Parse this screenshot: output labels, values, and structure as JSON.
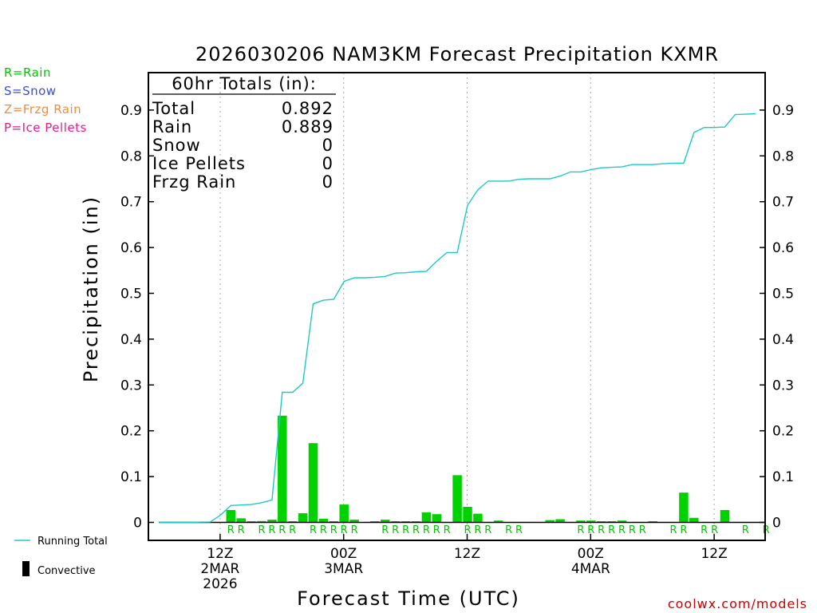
{
  "chart_data": {
    "type": "bar+line",
    "title": "2026030206 NAM3KM Forecast Precipitation KXMR",
    "xlabel": "Forecast Time (UTC)",
    "ylabel": "Precipitation (in)",
    "ylim": [
      0,
      0.97
    ],
    "xlim_hours": [
      -1.2,
      61
    ],
    "y_ticks": [
      "0",
      "0.1",
      "0.2",
      "0.3",
      "0.4",
      "0.5",
      "0.6",
      "0.7",
      "0.8",
      "0.9"
    ],
    "x_ticks": [
      {
        "hour": 6,
        "lines": [
          "12Z",
          "2MAR",
          "2026"
        ]
      },
      {
        "hour": 18,
        "lines": [
          "00Z",
          "3MAR"
        ]
      },
      {
        "hour": 30,
        "lines": [
          "12Z"
        ]
      },
      {
        "hour": 42,
        "lines": [
          "00Z",
          "4MAR"
        ]
      },
      {
        "hour": 54,
        "lines": [
          "12Z"
        ]
      }
    ],
    "totals_box": {
      "header": "60hr Totals (in):",
      "rows": [
        {
          "label": "Total",
          "value": "0.892"
        },
        {
          "label": "Rain",
          "value": "0.889"
        },
        {
          "label": "Snow",
          "value": "0"
        },
        {
          "label": "Ice Pellets",
          "value": "0"
        },
        {
          "label": "Frzg Rain",
          "value": "0"
        }
      ]
    },
    "type_legend": [
      {
        "text": "R=Rain",
        "color": "#00c800"
      },
      {
        "text": "S=Snow",
        "color": "#3c50dc"
      },
      {
        "text": "Z=Frzg Rain",
        "color": "#f08c3c"
      },
      {
        "text": "P=Ice Pellets",
        "color": "#e61e8c"
      }
    ],
    "bottom_legend": {
      "running_total": "Running Total",
      "convective": "Convective"
    },
    "credit": "coolwx.com/models",
    "colors": {
      "bar": "#00d200",
      "line": "#20c8c8",
      "gridline": "#aaaaaa"
    },
    "hourly_precip": [
      {
        "hour": 0,
        "value": 0
      },
      {
        "hour": 1,
        "value": 0
      },
      {
        "hour": 2,
        "value": 0
      },
      {
        "hour": 3,
        "value": 0
      },
      {
        "hour": 4,
        "value": 0
      },
      {
        "hour": 5,
        "value": 0
      },
      {
        "hour": 6,
        "value": 0
      },
      {
        "hour": 7,
        "value": 0.027
      },
      {
        "hour": 8,
        "value": 0.009
      },
      {
        "hour": 9,
        "value": 0.001
      },
      {
        "hour": 10,
        "value": 0.003
      },
      {
        "hour": 11,
        "value": 0.006
      },
      {
        "hour": 12,
        "value": 0.233
      },
      {
        "hour": 13,
        "value": 0.001
      },
      {
        "hour": 14,
        "value": 0.02
      },
      {
        "hour": 15,
        "value": 0.173
      },
      {
        "hour": 16,
        "value": 0.008
      },
      {
        "hour": 17,
        "value": 0.001
      },
      {
        "hour": 18,
        "value": 0.039
      },
      {
        "hour": 19,
        "value": 0.006
      },
      {
        "hour": 20,
        "value": 0
      },
      {
        "hour": 21,
        "value": 0.002
      },
      {
        "hour": 22,
        "value": 0.006
      },
      {
        "hour": 23,
        "value": 0.001
      },
      {
        "hour": 24,
        "value": 0.001
      },
      {
        "hour": 25,
        "value": 0.001
      },
      {
        "hour": 26,
        "value": 0.022
      },
      {
        "hour": 27,
        "value": 0.018
      },
      {
        "hour": 28,
        "value": 0
      },
      {
        "hour": 29,
        "value": 0.103
      },
      {
        "hour": 30,
        "value": 0.034
      },
      {
        "hour": 31,
        "value": 0.019
      },
      {
        "hour": 32,
        "value": 0
      },
      {
        "hour": 33,
        "value": 0.004
      },
      {
        "hour": 34,
        "value": 0
      },
      {
        "hour": 35,
        "value": 0
      },
      {
        "hour": 36,
        "value": 0
      },
      {
        "hour": 37,
        "value": 0
      },
      {
        "hour": 38,
        "value": 0.005
      },
      {
        "hour": 39,
        "value": 0.007
      },
      {
        "hour": 40,
        "value": 0
      },
      {
        "hour": 41,
        "value": 0.004
      },
      {
        "hour": 42,
        "value": 0.004
      },
      {
        "hour": 43,
        "value": 0.001
      },
      {
        "hour": 44,
        "value": 0.001
      },
      {
        "hour": 45,
        "value": 0.004
      },
      {
        "hour": 46,
        "value": 0
      },
      {
        "hour": 47,
        "value": 0
      },
      {
        "hour": 48,
        "value": 0.002
      },
      {
        "hour": 49,
        "value": 0
      },
      {
        "hour": 50,
        "value": 0
      },
      {
        "hour": 51,
        "value": 0.065
      },
      {
        "hour": 52,
        "value": 0.01
      },
      {
        "hour": 53,
        "value": 0
      },
      {
        "hour": 54,
        "value": 0
      },
      {
        "hour": 55,
        "value": 0.027
      },
      {
        "hour": 56,
        "value": 0
      },
      {
        "hour": 57,
        "value": 0
      },
      {
        "hour": 58,
        "value": 0
      },
      {
        "hour": 59,
        "value": 0
      }
    ],
    "running_total": [
      {
        "hour": 0,
        "value": 0
      },
      {
        "hour": 3,
        "value": 0
      },
      {
        "hour": 5,
        "value": 0.001
      },
      {
        "hour": 6,
        "value": 0.016
      },
      {
        "hour": 7,
        "value": 0.037
      },
      {
        "hour": 8,
        "value": 0.038
      },
      {
        "hour": 9,
        "value": 0.039
      },
      {
        "hour": 10,
        "value": 0.043
      },
      {
        "hour": 11,
        "value": 0.049
      },
      {
        "hour": 12,
        "value": 0.284
      },
      {
        "hour": 13,
        "value": 0.284
      },
      {
        "hour": 14,
        "value": 0.304
      },
      {
        "hour": 15,
        "value": 0.477
      },
      {
        "hour": 16,
        "value": 0.485
      },
      {
        "hour": 17,
        "value": 0.487
      },
      {
        "hour": 18,
        "value": 0.526
      },
      {
        "hour": 19,
        "value": 0.534
      },
      {
        "hour": 20,
        "value": 0.534
      },
      {
        "hour": 21,
        "value": 0.535
      },
      {
        "hour": 22,
        "value": 0.537
      },
      {
        "hour": 23,
        "value": 0.544
      },
      {
        "hour": 24,
        "value": 0.545
      },
      {
        "hour": 25,
        "value": 0.547
      },
      {
        "hour": 26,
        "value": 0.548
      },
      {
        "hour": 27,
        "value": 0.57
      },
      {
        "hour": 28,
        "value": 0.589
      },
      {
        "hour": 29,
        "value": 0.589
      },
      {
        "hour": 30,
        "value": 0.692
      },
      {
        "hour": 31,
        "value": 0.726
      },
      {
        "hour": 32,
        "value": 0.745
      },
      {
        "hour": 33,
        "value": 0.745
      },
      {
        "hour": 34,
        "value": 0.745
      },
      {
        "hour": 35,
        "value": 0.749
      },
      {
        "hour": 36,
        "value": 0.75
      },
      {
        "hour": 37,
        "value": 0.75
      },
      {
        "hour": 38,
        "value": 0.75
      },
      {
        "hour": 39,
        "value": 0.756
      },
      {
        "hour": 40,
        "value": 0.765
      },
      {
        "hour": 41,
        "value": 0.765
      },
      {
        "hour": 42,
        "value": 0.77
      },
      {
        "hour": 43,
        "value": 0.774
      },
      {
        "hour": 44,
        "value": 0.775
      },
      {
        "hour": 45,
        "value": 0.776
      },
      {
        "hour": 46,
        "value": 0.781
      },
      {
        "hour": 47,
        "value": 0.781
      },
      {
        "hour": 48,
        "value": 0.781
      },
      {
        "hour": 49,
        "value": 0.783
      },
      {
        "hour": 50,
        "value": 0.784
      },
      {
        "hour": 51,
        "value": 0.784
      },
      {
        "hour": 52,
        "value": 0.851
      },
      {
        "hour": 53,
        "value": 0.862
      },
      {
        "hour": 54,
        "value": 0.862
      },
      {
        "hour": 55,
        "value": 0.863
      },
      {
        "hour": 56,
        "value": 0.89
      },
      {
        "hour": 57,
        "value": 0.891
      },
      {
        "hour": 58,
        "value": 0.892
      }
    ],
    "ptype_markers": [
      {
        "hour": 7,
        "label": "R"
      },
      {
        "hour": 8,
        "label": "R"
      },
      {
        "hour": 10,
        "label": "R"
      },
      {
        "hour": 11,
        "label": "R"
      },
      {
        "hour": 12,
        "label": "R"
      },
      {
        "hour": 13,
        "label": "R"
      },
      {
        "hour": 15,
        "label": "R"
      },
      {
        "hour": 16,
        "label": "R"
      },
      {
        "hour": 17,
        "label": "R"
      },
      {
        "hour": 18,
        "label": "R"
      },
      {
        "hour": 19,
        "label": "R"
      },
      {
        "hour": 22,
        "label": "R"
      },
      {
        "hour": 23,
        "label": "R"
      },
      {
        "hour": 24,
        "label": "R"
      },
      {
        "hour": 25,
        "label": "R"
      },
      {
        "hour": 26,
        "label": "R"
      },
      {
        "hour": 27,
        "label": "R"
      },
      {
        "hour": 28,
        "label": "R"
      },
      {
        "hour": 30,
        "label": "R"
      },
      {
        "hour": 31,
        "label": "R"
      },
      {
        "hour": 32,
        "label": "R"
      },
      {
        "hour": 34,
        "label": "R"
      },
      {
        "hour": 35,
        "label": "R"
      },
      {
        "hour": 41,
        "label": "R"
      },
      {
        "hour": 42,
        "label": "R"
      },
      {
        "hour": 43,
        "label": "R"
      },
      {
        "hour": 44,
        "label": "R"
      },
      {
        "hour": 45,
        "label": "R"
      },
      {
        "hour": 46,
        "label": "R"
      },
      {
        "hour": 47,
        "label": "R"
      },
      {
        "hour": 50,
        "label": "R"
      },
      {
        "hour": 51,
        "label": "R"
      },
      {
        "hour": 53,
        "label": "R"
      },
      {
        "hour": 54,
        "label": "R"
      },
      {
        "hour": 57,
        "label": "R"
      },
      {
        "hour": 59,
        "label": "R"
      }
    ]
  }
}
